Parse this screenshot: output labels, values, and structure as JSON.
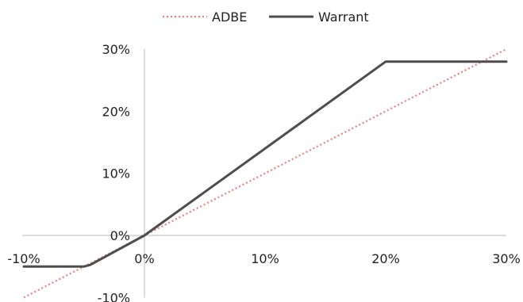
{
  "chart_data": {
    "type": "line",
    "title": "",
    "xlabel": "",
    "ylabel": "",
    "xlim": [
      -0.1,
      0.3
    ],
    "ylim": [
      -0.1,
      0.3
    ],
    "x_ticks": [
      {
        "value": -0.1,
        "label": "-10%"
      },
      {
        "value": 0.0,
        "label": "0%"
      },
      {
        "value": 0.1,
        "label": "10%"
      },
      {
        "value": 0.2,
        "label": "20%"
      },
      {
        "value": 0.3,
        "label": "30%"
      }
    ],
    "y_ticks": [
      {
        "value": -0.1,
        "label": "-10%"
      },
      {
        "value": 0.0,
        "label": "0%"
      },
      {
        "value": 0.1,
        "label": "10%"
      },
      {
        "value": 0.2,
        "label": "20%"
      },
      {
        "value": 0.3,
        "label": "30%"
      }
    ],
    "grid": false,
    "legend_position": "top-center",
    "series": [
      {
        "name": "ADBE",
        "color": "#e8817f",
        "style": "dotted",
        "x": [
          -0.1,
          0.3
        ],
        "y": [
          -0.1,
          0.3
        ]
      },
      {
        "name": "Warrant",
        "color": "#4d4d4d",
        "style": "solid",
        "x": [
          -0.1,
          -0.05,
          -0.045,
          0.0,
          0.2,
          0.3
        ],
        "y": [
          -0.05,
          -0.05,
          -0.0475,
          0.0,
          0.28,
          0.28
        ]
      }
    ]
  }
}
